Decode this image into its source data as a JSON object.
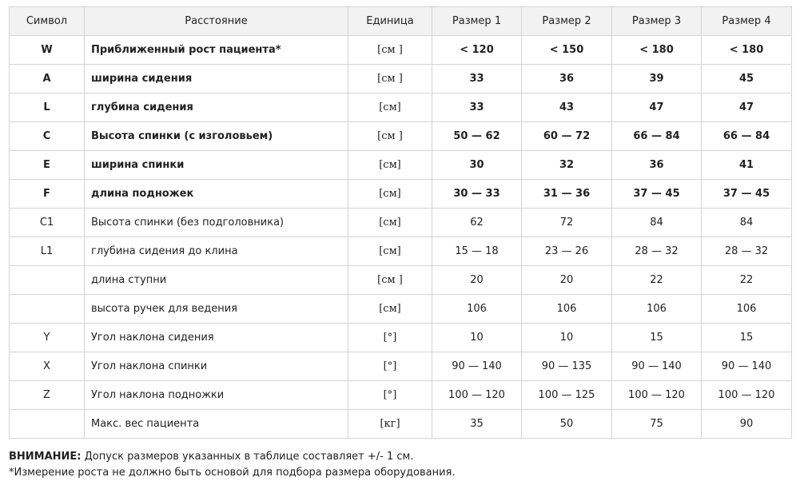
{
  "headers": [
    "Символ",
    "Расстояние",
    "Единица",
    "Размер 1",
    "Размер 2",
    "Размер 3",
    "Размер 4"
  ],
  "rows": [
    {
      "bold": true,
      "cells": [
        "W",
        "Приближенный  рост пациента*",
        "[см ]",
        "< 120",
        "< 150",
        "< 180",
        "< 180"
      ]
    },
    {
      "bold": true,
      "cells": [
        "A",
        "ширина сидения",
        "[см ]",
        "33",
        "36",
        "39",
        "45"
      ]
    },
    {
      "bold": true,
      "cells": [
        "L",
        "глубина сидения",
        "[см]",
        "33",
        "43",
        "47",
        "47"
      ]
    },
    {
      "bold": true,
      "cells": [
        "C",
        "Высота спинки (с изголовьем)",
        "[см ]",
        "50 — 62",
        "60 — 72",
        "66 — 84",
        "66 — 84"
      ]
    },
    {
      "bold": true,
      "cells": [
        "E",
        "ширина спинки",
        "[см]",
        "30",
        "32",
        "36",
        "41"
      ]
    },
    {
      "bold": true,
      "cells": [
        "F",
        "длина подножек",
        "[см]",
        "30 — 33",
        "31 — 36",
        "37 — 45",
        "37 — 45"
      ]
    },
    {
      "bold": false,
      "cells": [
        "C1",
        "Высота спинки (без подголовника)",
        "[см]",
        "62",
        "72",
        "84",
        "84"
      ]
    },
    {
      "bold": false,
      "cells": [
        "L1",
        "глубина сидения до клина",
        "[см]",
        "15 — 18",
        "23 — 26",
        "28 — 32",
        "28 — 32"
      ]
    },
    {
      "bold": false,
      "cells": [
        "",
        "длина ступни",
        "[см ]",
        "20",
        "20",
        "22",
        "22"
      ]
    },
    {
      "bold": false,
      "cells": [
        "",
        "высота ручек для ведения",
        "[см]",
        "106",
        "106",
        "106",
        "106"
      ]
    },
    {
      "bold": false,
      "cells": [
        "Y",
        "Угол наклона сидения",
        "[°]",
        "10",
        "10",
        "15",
        "15"
      ]
    },
    {
      "bold": false,
      "cells": [
        "X",
        "Угол наклона спинки",
        "[°]",
        "90 — 140",
        "90 — 135",
        "90 — 140",
        "90 — 140"
      ]
    },
    {
      "bold": false,
      "cells": [
        "Z",
        "Угол наклона подножки",
        "[°]",
        "100 — 120",
        "100 — 125",
        "100 — 120",
        "100 — 120"
      ]
    },
    {
      "bold": false,
      "cells": [
        "",
        "Макс. вес пациента",
        "[кг]",
        "35",
        "50",
        "75",
        "90"
      ]
    }
  ],
  "notes": {
    "warning_label": "ВНИМАНИЕ:",
    "warning_text": " Допуск размеров указанных в таблице составляет +/- 1 см.",
    "footnote": "*Измерение роста не должно быть основой для подбора размера оборудования."
  }
}
